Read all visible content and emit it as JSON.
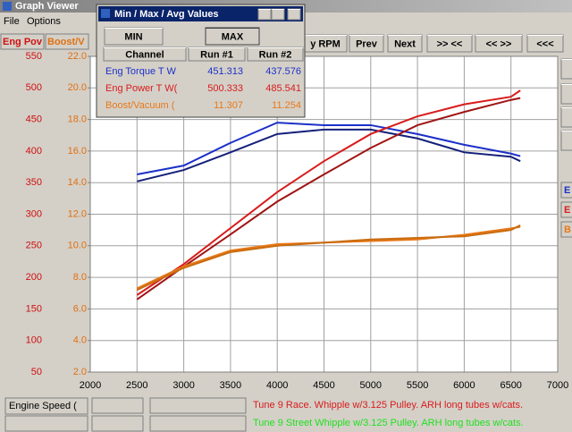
{
  "window": {
    "title": "Graph Viewer",
    "menu": [
      "File",
      "Options"
    ]
  },
  "toolbar": {
    "buttons": [
      "y RPM",
      "Prev",
      "Next",
      ">> <<",
      "<< >>",
      "<<<"
    ]
  },
  "side_labels": [
    "E",
    "E",
    "B"
  ],
  "dialog": {
    "title": "Min / Max / Avg Values",
    "buttons": [
      "MIN",
      "MAX"
    ],
    "columns": [
      "Channel",
      "Run #1",
      "Run #2"
    ],
    "rows": [
      [
        "Eng Torque T W",
        451.313,
        437.576
      ],
      [
        "Eng Power T W(",
        500.333,
        485.541
      ],
      [
        "Boost/Vacuum (",
        11.307,
        11.254
      ]
    ]
  },
  "status": {
    "channel": "Engine Speed (",
    "runs": [
      "Tune 9 Race. Whipple w/3.125 Pulley. ARH long tubes w/cats.",
      "Tune 9 Street Whipple w/3.125 Pulley. ARH long tubes w/cats."
    ]
  },
  "chart_data": {
    "type": "line",
    "y_label": "Eng Pov",
    "y2_label": "Boost/V",
    "x": [
      2500,
      3000,
      3500,
      4000,
      4500,
      5000,
      5500,
      6000,
      6500,
      6600
    ],
    "xlim": [
      2000,
      7000
    ],
    "xticks": [
      2000,
      2500,
      3000,
      3500,
      4000,
      4500,
      5000,
      5500,
      6000,
      6500,
      7000
    ],
    "ylim": [
      50,
      550
    ],
    "yticks": [
      50,
      100,
      150,
      200,
      250,
      300,
      350,
      400,
      450,
      500,
      550
    ],
    "y2lim": [
      2,
      22
    ],
    "y2ticks": [
      {
        "value": 2,
        "label": "2.0"
      },
      {
        "value": 4,
        "label": "4.0"
      },
      {
        "value": 6,
        "label": "6.0"
      },
      {
        "value": 8,
        "label": "8.0"
      },
      {
        "value": 10,
        "label": "10.0"
      },
      {
        "value": 12,
        "label": "12.0"
      },
      {
        "value": 14,
        "label": "14.0"
      },
      {
        "value": 16,
        "label": "16.0"
      },
      {
        "value": 18,
        "label": "18.0"
      },
      {
        "value": 20,
        "label": "20.0"
      },
      {
        "value": 22,
        "label": "22.0"
      }
    ],
    "grid": true,
    "series": [
      {
        "color": "#1c30c8",
        "values": [
          363,
          377,
          413,
          445,
          441,
          441,
          427,
          410,
          396,
          392
        ]
      },
      {
        "color": "#14207a",
        "values": [
          352,
          370,
          398,
          427,
          434,
          434,
          420,
          398,
          391,
          384
        ]
      },
      {
        "color": "#d81c1c",
        "values": [
          172,
          221,
          278,
          335,
          384,
          427,
          455,
          474,
          486,
          496
        ]
      },
      {
        "color": "#a01414",
        "values": [
          165,
          217,
          268,
          320,
          363,
          405,
          441,
          462,
          481,
          484
        ]
      },
      {
        "color": "#e87818",
        "axis": "y2",
        "values": [
          7.3,
          8.7,
          9.7,
          10.1,
          10.2,
          10.3,
          10.4,
          10.7,
          11.1,
          11.2
        ]
      },
      {
        "color": "#c86c10",
        "axis": "y2",
        "values": [
          7.2,
          8.6,
          9.6,
          10.0,
          10.2,
          10.4,
          10.5,
          10.6,
          11.0,
          11.3
        ]
      }
    ]
  }
}
